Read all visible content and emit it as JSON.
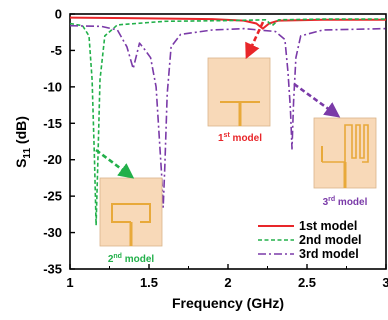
{
  "chart_data": {
    "type": "line",
    "xlabel": "Frequency (GHz)",
    "ylabel_main": "S",
    "ylabel_sub": "11",
    "ylabel_unit": " (dB)",
    "xlim": [
      1,
      3
    ],
    "ylim": [
      -35,
      0
    ],
    "xticks": [
      "1",
      "1.5",
      "2",
      "2.5",
      "3"
    ],
    "yticks": [
      "0",
      "-5",
      "-10",
      "-15",
      "-20",
      "-25",
      "-30",
      "-35"
    ],
    "grid": false,
    "legend_position": "bottom-right",
    "colors": {
      "model1": "#e8262a",
      "model2": "#22b04a",
      "model3": "#7a3aa8",
      "inset_bg": "#f8d9b8",
      "antenna": "#e8a93a"
    },
    "series": [
      {
        "name": "1st model",
        "style": "solid",
        "points": [
          [
            1,
            -0.5
          ],
          [
            1.5,
            -0.6
          ],
          [
            1.9,
            -0.7
          ],
          [
            2.1,
            -0.9
          ],
          [
            2.18,
            -1.3
          ],
          [
            2.22,
            -2.0
          ],
          [
            2.26,
            -1.3
          ],
          [
            2.32,
            -0.9
          ],
          [
            2.6,
            -0.8
          ],
          [
            3,
            -0.8
          ]
        ]
      },
      {
        "name": "2nd model",
        "style": "dashed",
        "points": [
          [
            1,
            -1.3
          ],
          [
            1.08,
            -1.6
          ],
          [
            1.12,
            -3
          ],
          [
            1.14,
            -9
          ],
          [
            1.155,
            -20
          ],
          [
            1.165,
            -29
          ],
          [
            1.175,
            -21
          ],
          [
            1.19,
            -9
          ],
          [
            1.22,
            -3
          ],
          [
            1.3,
            -1.5
          ],
          [
            1.6,
            -1.0
          ],
          [
            2.0,
            -0.9
          ],
          [
            2.24,
            -0.8
          ],
          [
            2.28,
            -1.6
          ],
          [
            2.32,
            -0.8
          ],
          [
            2.6,
            -0.7
          ],
          [
            3,
            -0.7
          ]
        ]
      },
      {
        "name": "3rd model",
        "style": "dash-dot",
        "points": [
          [
            1,
            -1.6
          ],
          [
            1.2,
            -1.7
          ],
          [
            1.3,
            -2.2
          ],
          [
            1.36,
            -4.5
          ],
          [
            1.4,
            -7.5
          ],
          [
            1.44,
            -4
          ],
          [
            1.47,
            -4.8
          ],
          [
            1.51,
            -6
          ],
          [
            1.545,
            -10
          ],
          [
            1.565,
            -17
          ],
          [
            1.58,
            -22
          ],
          [
            1.59,
            -26.5
          ],
          [
            1.6,
            -21
          ],
          [
            1.615,
            -11
          ],
          [
            1.64,
            -4.5
          ],
          [
            1.7,
            -2.8
          ],
          [
            1.9,
            -2.2
          ],
          [
            2.1,
            -2.0
          ],
          [
            2.3,
            -2.4
          ],
          [
            2.36,
            -3.5
          ],
          [
            2.38,
            -8
          ],
          [
            2.395,
            -13
          ],
          [
            2.405,
            -18.5
          ],
          [
            2.415,
            -12
          ],
          [
            2.43,
            -6
          ],
          [
            2.46,
            -3
          ],
          [
            2.6,
            -2.2
          ],
          [
            3,
            -2.0
          ]
        ]
      }
    ],
    "insets": [
      {
        "label_base": "1",
        "label_sup": "st",
        "label_rest": " model",
        "type": "T-stub",
        "label_color": "#e8262a"
      },
      {
        "label_base": "2",
        "label_sup": "nd",
        "label_rest": " model",
        "type": "loop",
        "label_color": "#22b04a"
      },
      {
        "label_base": "3",
        "label_sup": "rd",
        "label_rest": " model",
        "type": "meander",
        "label_color": "#7a3aa8"
      }
    ]
  }
}
